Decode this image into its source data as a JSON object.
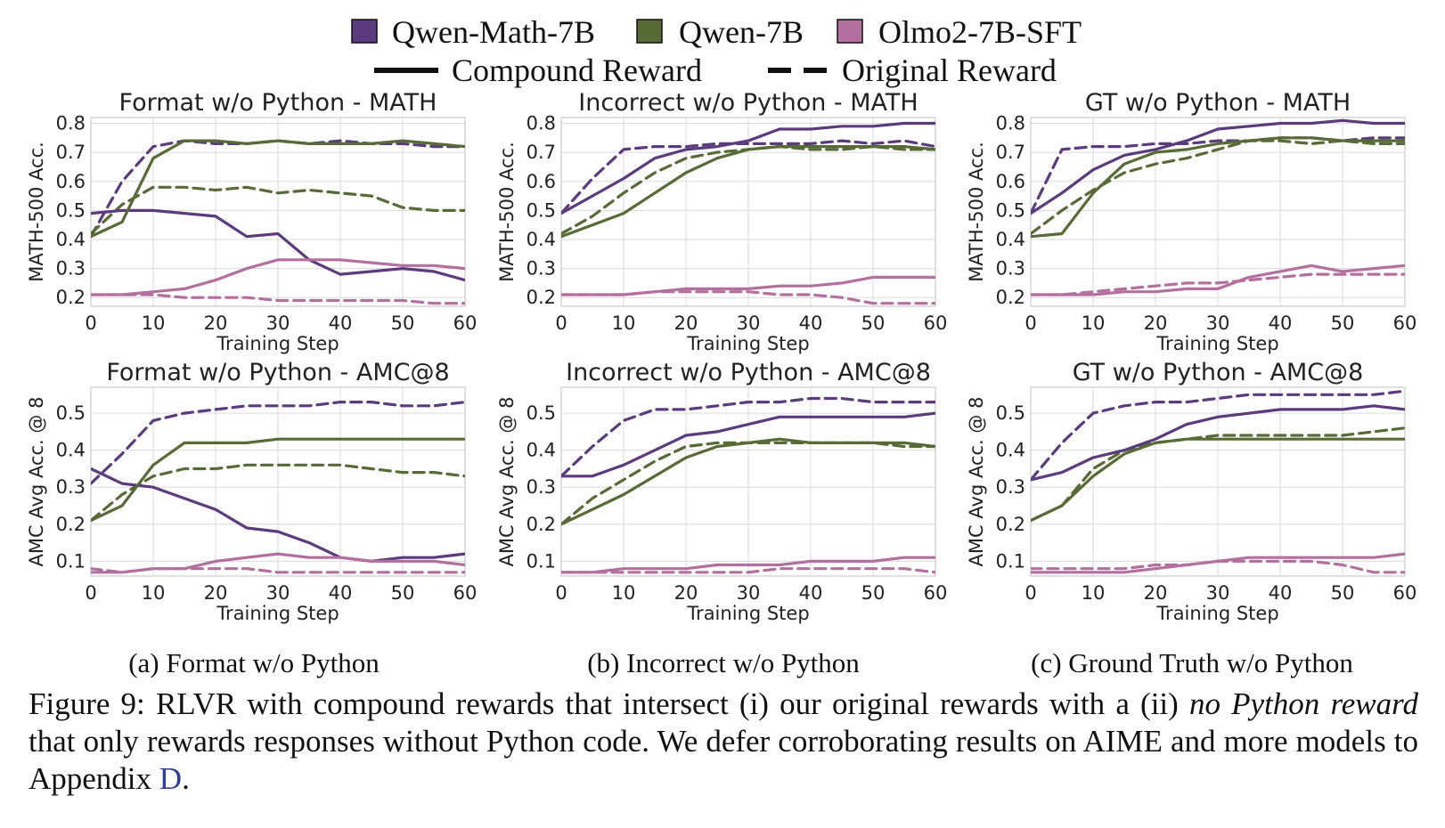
{
  "legend": {
    "models": [
      {
        "label": "Qwen-Math-7B",
        "color": "#5b3a7e"
      },
      {
        "label": "Qwen-7B",
        "color": "#566b35"
      },
      {
        "label": "Olmo2-7B-SFT",
        "color": "#b36f9e"
      }
    ],
    "styles": [
      {
        "label": "Compound Reward",
        "dash": "solid"
      },
      {
        "label": "Original Reward",
        "dash": "dashed"
      }
    ]
  },
  "sub_captions": [
    "(a) Format w/o Python",
    "(b) Incorrect w/o Python",
    "(c) Ground Truth w/o Python"
  ],
  "caption": {
    "part1": "Figure 9: RLVR with compound rewards that intersect (i) our original rewards with a (ii) ",
    "italic": "no Python reward",
    "part2": " that only rewards responses without Python code. We defer corroborating results on AIME and more models to Appendix ",
    "ref": "D",
    "end": "."
  },
  "chart_data": [
    {
      "type": "line",
      "title": "Format w/o Python - MATH",
      "xlabel": "Training Step",
      "ylabel": "MATH-500 Acc.",
      "xlim": [
        0,
        60
      ],
      "ylim": [
        0.17,
        0.82
      ],
      "xticks": [
        0,
        10,
        20,
        30,
        40,
        50,
        60
      ],
      "xtick_labels": [
        "0",
        "10",
        "20",
        "30",
        "40",
        "50",
        "60"
      ],
      "yticks": [
        0.2,
        0.3,
        0.4,
        0.5,
        0.6,
        0.7,
        0.8
      ],
      "ytick_labels": [
        "0.2",
        "0.3",
        "0.4",
        "0.5",
        "0.6",
        "0.7",
        "0.8"
      ],
      "grid": true,
      "x": [
        0,
        5,
        10,
        15,
        20,
        25,
        30,
        35,
        40,
        45,
        50,
        55,
        60
      ],
      "series": [
        {
          "model": 0,
          "dash": "solid",
          "values": [
            0.49,
            0.5,
            0.5,
            0.49,
            0.48,
            0.41,
            0.42,
            0.33,
            0.28,
            0.29,
            0.3,
            0.29,
            0.26
          ]
        },
        {
          "model": 0,
          "dash": "dashed",
          "values": [
            0.41,
            0.6,
            0.72,
            0.74,
            0.73,
            0.73,
            0.74,
            0.73,
            0.74,
            0.73,
            0.73,
            0.72,
            0.72
          ]
        },
        {
          "model": 1,
          "dash": "solid",
          "values": [
            0.41,
            0.46,
            0.68,
            0.74,
            0.74,
            0.73,
            0.74,
            0.73,
            0.73,
            0.73,
            0.74,
            0.73,
            0.72
          ]
        },
        {
          "model": 1,
          "dash": "dashed",
          "values": [
            0.42,
            0.52,
            0.58,
            0.58,
            0.57,
            0.58,
            0.56,
            0.57,
            0.56,
            0.55,
            0.51,
            0.5,
            0.5
          ]
        },
        {
          "model": 2,
          "dash": "solid",
          "values": [
            0.21,
            0.21,
            0.22,
            0.23,
            0.26,
            0.3,
            0.33,
            0.33,
            0.33,
            0.32,
            0.31,
            0.31,
            0.3
          ]
        },
        {
          "model": 2,
          "dash": "dashed",
          "values": [
            0.21,
            0.21,
            0.21,
            0.2,
            0.2,
            0.2,
            0.19,
            0.19,
            0.19,
            0.19,
            0.19,
            0.18,
            0.18
          ]
        }
      ]
    },
    {
      "type": "line",
      "title": "Incorrect w/o Python - MATH",
      "xlabel": "Training Step",
      "ylabel": "MATH-500 Acc.",
      "xlim": [
        0,
        60
      ],
      "ylim": [
        0.17,
        0.82
      ],
      "xticks": [
        0,
        10,
        20,
        30,
        40,
        50,
        60
      ],
      "xtick_labels": [
        "0",
        "10",
        "20",
        "30",
        "40",
        "50",
        "60"
      ],
      "yticks": [
        0.2,
        0.3,
        0.4,
        0.5,
        0.6,
        0.7,
        0.8
      ],
      "ytick_labels": [
        "0.2",
        "0.3",
        "0.4",
        "0.5",
        "0.6",
        "0.7",
        "0.8"
      ],
      "grid": true,
      "x": [
        0,
        5,
        10,
        15,
        20,
        25,
        30,
        35,
        40,
        45,
        50,
        55,
        60
      ],
      "series": [
        {
          "model": 0,
          "dash": "solid",
          "values": [
            0.49,
            0.55,
            0.61,
            0.68,
            0.71,
            0.72,
            0.74,
            0.78,
            0.78,
            0.79,
            0.79,
            0.8,
            0.8
          ]
        },
        {
          "model": 0,
          "dash": "dashed",
          "values": [
            0.49,
            0.61,
            0.71,
            0.72,
            0.72,
            0.73,
            0.73,
            0.73,
            0.73,
            0.74,
            0.73,
            0.74,
            0.72
          ]
        },
        {
          "model": 1,
          "dash": "solid",
          "values": [
            0.41,
            0.45,
            0.49,
            0.56,
            0.63,
            0.68,
            0.71,
            0.72,
            0.72,
            0.72,
            0.72,
            0.72,
            0.71
          ]
        },
        {
          "model": 1,
          "dash": "dashed",
          "values": [
            0.42,
            0.48,
            0.56,
            0.63,
            0.68,
            0.7,
            0.71,
            0.72,
            0.71,
            0.71,
            0.72,
            0.71,
            0.71
          ]
        },
        {
          "model": 2,
          "dash": "solid",
          "values": [
            0.21,
            0.21,
            0.21,
            0.22,
            0.23,
            0.23,
            0.23,
            0.24,
            0.24,
            0.25,
            0.27,
            0.27,
            0.27
          ]
        },
        {
          "model": 2,
          "dash": "dashed",
          "values": [
            0.21,
            0.21,
            0.21,
            0.22,
            0.22,
            0.22,
            0.22,
            0.21,
            0.21,
            0.2,
            0.18,
            0.18,
            0.18
          ]
        }
      ]
    },
    {
      "type": "line",
      "title": "GT w/o Python - MATH",
      "xlabel": "Training Step",
      "ylabel": "MATH-500 Acc.",
      "xlim": [
        0,
        60
      ],
      "ylim": [
        0.17,
        0.82
      ],
      "xticks": [
        0,
        10,
        20,
        30,
        40,
        50,
        60
      ],
      "xtick_labels": [
        "0",
        "10",
        "20",
        "30",
        "40",
        "50",
        "60"
      ],
      "yticks": [
        0.2,
        0.3,
        0.4,
        0.5,
        0.6,
        0.7,
        0.8
      ],
      "ytick_labels": [
        "0.2",
        "0.3",
        "0.4",
        "0.5",
        "0.6",
        "0.7",
        "0.8"
      ],
      "grid": true,
      "x": [
        0,
        5,
        10,
        15,
        20,
        25,
        30,
        35,
        40,
        45,
        50,
        55,
        60
      ],
      "series": [
        {
          "model": 0,
          "dash": "solid",
          "values": [
            0.49,
            0.56,
            0.64,
            0.69,
            0.71,
            0.74,
            0.78,
            0.79,
            0.8,
            0.8,
            0.81,
            0.8,
            0.8
          ]
        },
        {
          "model": 0,
          "dash": "dashed",
          "values": [
            0.49,
            0.71,
            0.72,
            0.72,
            0.73,
            0.73,
            0.74,
            0.74,
            0.75,
            0.75,
            0.74,
            0.75,
            0.75
          ]
        },
        {
          "model": 1,
          "dash": "solid",
          "values": [
            0.41,
            0.42,
            0.56,
            0.66,
            0.7,
            0.71,
            0.73,
            0.74,
            0.75,
            0.75,
            0.74,
            0.74,
            0.74
          ]
        },
        {
          "model": 1,
          "dash": "dashed",
          "values": [
            0.42,
            0.5,
            0.57,
            0.63,
            0.66,
            0.68,
            0.71,
            0.74,
            0.74,
            0.73,
            0.74,
            0.73,
            0.73
          ]
        },
        {
          "model": 2,
          "dash": "solid",
          "values": [
            0.21,
            0.21,
            0.21,
            0.22,
            0.22,
            0.23,
            0.23,
            0.27,
            0.29,
            0.31,
            0.29,
            0.3,
            0.31
          ]
        },
        {
          "model": 2,
          "dash": "dashed",
          "values": [
            0.21,
            0.21,
            0.22,
            0.23,
            0.24,
            0.25,
            0.25,
            0.26,
            0.27,
            0.28,
            0.28,
            0.28,
            0.28
          ]
        }
      ]
    },
    {
      "type": "line",
      "title": "Format w/o Python - AMC@8",
      "xlabel": "Training Step",
      "ylabel": "AMC Avg Acc. @ 8",
      "xlim": [
        0,
        60
      ],
      "ylim": [
        0.06,
        0.57
      ],
      "xticks": [
        0,
        10,
        20,
        30,
        40,
        50,
        60
      ],
      "xtick_labels": [
        "0",
        "10",
        "20",
        "30",
        "40",
        "50",
        "60"
      ],
      "yticks": [
        0.1,
        0.2,
        0.3,
        0.4,
        0.5
      ],
      "ytick_labels": [
        "0.1",
        "0.2",
        "0.3",
        "0.4",
        "0.5"
      ],
      "grid": true,
      "x": [
        0,
        5,
        10,
        15,
        20,
        25,
        30,
        35,
        40,
        45,
        50,
        55,
        60
      ],
      "series": [
        {
          "model": 0,
          "dash": "solid",
          "values": [
            0.35,
            0.31,
            0.3,
            0.27,
            0.24,
            0.19,
            0.18,
            0.15,
            0.11,
            0.1,
            0.11,
            0.11,
            0.12
          ]
        },
        {
          "model": 0,
          "dash": "dashed",
          "values": [
            0.31,
            0.39,
            0.48,
            0.5,
            0.51,
            0.52,
            0.52,
            0.52,
            0.53,
            0.53,
            0.52,
            0.52,
            0.53
          ]
        },
        {
          "model": 1,
          "dash": "solid",
          "values": [
            0.21,
            0.25,
            0.36,
            0.42,
            0.42,
            0.42,
            0.43,
            0.43,
            0.43,
            0.43,
            0.43,
            0.43,
            0.43
          ]
        },
        {
          "model": 1,
          "dash": "dashed",
          "values": [
            0.21,
            0.28,
            0.33,
            0.35,
            0.35,
            0.36,
            0.36,
            0.36,
            0.36,
            0.35,
            0.34,
            0.34,
            0.33
          ]
        },
        {
          "model": 2,
          "dash": "solid",
          "values": [
            0.07,
            0.07,
            0.08,
            0.08,
            0.1,
            0.11,
            0.12,
            0.11,
            0.11,
            0.1,
            0.1,
            0.1,
            0.09
          ]
        },
        {
          "model": 2,
          "dash": "dashed",
          "values": [
            0.08,
            0.07,
            0.08,
            0.08,
            0.08,
            0.08,
            0.07,
            0.07,
            0.07,
            0.07,
            0.07,
            0.07,
            0.07
          ]
        }
      ]
    },
    {
      "type": "line",
      "title": "Incorrect w/o Python - AMC@8",
      "xlabel": "Training Step",
      "ylabel": "AMC Avg Acc. @ 8",
      "xlim": [
        0,
        60
      ],
      "ylim": [
        0.06,
        0.57
      ],
      "xticks": [
        0,
        10,
        20,
        30,
        40,
        50,
        60
      ],
      "xtick_labels": [
        "0",
        "10",
        "20",
        "30",
        "40",
        "50",
        "60"
      ],
      "yticks": [
        0.1,
        0.2,
        0.3,
        0.4,
        0.5
      ],
      "ytick_labels": [
        "0.1",
        "0.2",
        "0.3",
        "0.4",
        "0.5"
      ],
      "grid": true,
      "x": [
        0,
        5,
        10,
        15,
        20,
        25,
        30,
        35,
        40,
        45,
        50,
        55,
        60
      ],
      "series": [
        {
          "model": 0,
          "dash": "solid",
          "values": [
            0.33,
            0.33,
            0.36,
            0.4,
            0.44,
            0.45,
            0.47,
            0.49,
            0.49,
            0.49,
            0.49,
            0.49,
            0.5
          ]
        },
        {
          "model": 0,
          "dash": "dashed",
          "values": [
            0.33,
            0.41,
            0.48,
            0.51,
            0.51,
            0.52,
            0.53,
            0.53,
            0.54,
            0.54,
            0.53,
            0.53,
            0.53
          ]
        },
        {
          "model": 1,
          "dash": "solid",
          "values": [
            0.2,
            0.24,
            0.28,
            0.33,
            0.38,
            0.41,
            0.42,
            0.43,
            0.42,
            0.42,
            0.42,
            0.42,
            0.41
          ]
        },
        {
          "model": 1,
          "dash": "dashed",
          "values": [
            0.2,
            0.27,
            0.32,
            0.37,
            0.41,
            0.42,
            0.42,
            0.42,
            0.42,
            0.42,
            0.42,
            0.41,
            0.41
          ]
        },
        {
          "model": 2,
          "dash": "solid",
          "values": [
            0.07,
            0.07,
            0.08,
            0.08,
            0.08,
            0.09,
            0.09,
            0.09,
            0.1,
            0.1,
            0.1,
            0.11,
            0.11
          ]
        },
        {
          "model": 2,
          "dash": "dashed",
          "values": [
            0.07,
            0.07,
            0.07,
            0.07,
            0.07,
            0.07,
            0.07,
            0.08,
            0.08,
            0.08,
            0.08,
            0.08,
            0.07
          ]
        }
      ]
    },
    {
      "type": "line",
      "title": "GT w/o Python - AMC@8",
      "xlabel": "Training Step",
      "ylabel": "AMC Avg Acc. @ 8",
      "xlim": [
        0,
        60
      ],
      "ylim": [
        0.06,
        0.57
      ],
      "xticks": [
        0,
        10,
        20,
        30,
        40,
        50,
        60
      ],
      "xtick_labels": [
        "0",
        "10",
        "20",
        "30",
        "40",
        "50",
        "60"
      ],
      "yticks": [
        0.1,
        0.2,
        0.3,
        0.4,
        0.5
      ],
      "ytick_labels": [
        "0.1",
        "0.2",
        "0.3",
        "0.4",
        "0.5"
      ],
      "grid": true,
      "x": [
        0,
        5,
        10,
        15,
        20,
        25,
        30,
        35,
        40,
        45,
        50,
        55,
        60
      ],
      "series": [
        {
          "model": 0,
          "dash": "solid",
          "values": [
            0.32,
            0.34,
            0.38,
            0.4,
            0.43,
            0.47,
            0.49,
            0.5,
            0.51,
            0.51,
            0.51,
            0.52,
            0.51
          ]
        },
        {
          "model": 0,
          "dash": "dashed",
          "values": [
            0.32,
            0.42,
            0.5,
            0.52,
            0.53,
            0.53,
            0.54,
            0.55,
            0.55,
            0.55,
            0.55,
            0.55,
            0.56
          ]
        },
        {
          "model": 1,
          "dash": "solid",
          "values": [
            0.21,
            0.25,
            0.33,
            0.39,
            0.42,
            0.43,
            0.43,
            0.43,
            0.43,
            0.43,
            0.43,
            0.43,
            0.43
          ]
        },
        {
          "model": 1,
          "dash": "dashed",
          "values": [
            0.21,
            0.25,
            0.35,
            0.4,
            0.42,
            0.43,
            0.44,
            0.44,
            0.44,
            0.44,
            0.44,
            0.45,
            0.46
          ]
        },
        {
          "model": 2,
          "dash": "solid",
          "values": [
            0.07,
            0.07,
            0.07,
            0.07,
            0.08,
            0.09,
            0.1,
            0.11,
            0.11,
            0.11,
            0.11,
            0.11,
            0.12
          ]
        },
        {
          "model": 2,
          "dash": "dashed",
          "values": [
            0.08,
            0.08,
            0.08,
            0.08,
            0.09,
            0.09,
            0.1,
            0.1,
            0.1,
            0.1,
            0.09,
            0.07,
            0.07
          ]
        }
      ]
    }
  ]
}
